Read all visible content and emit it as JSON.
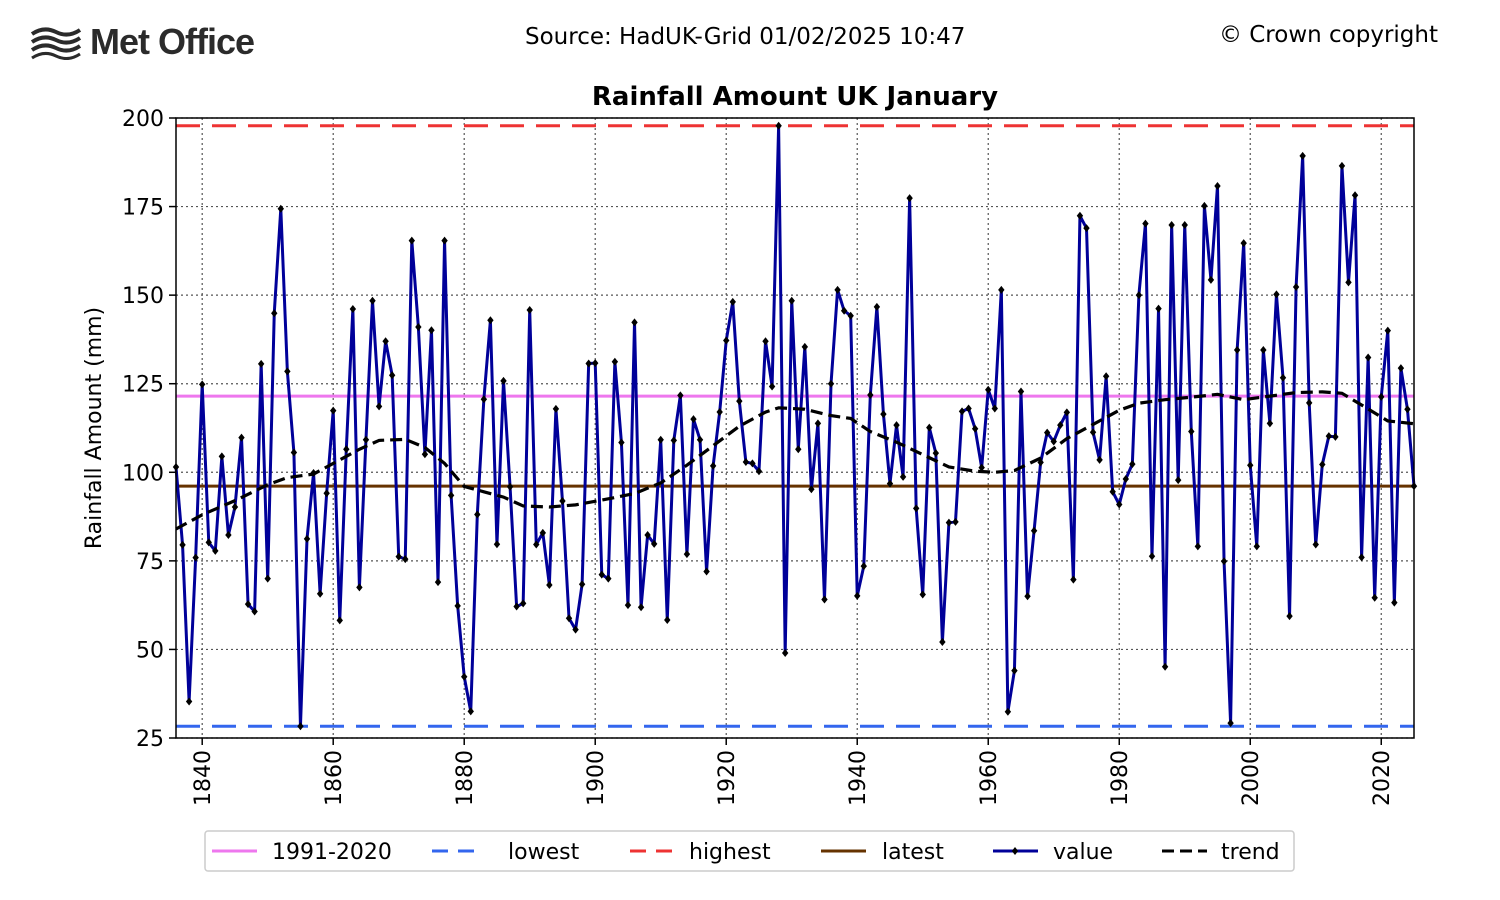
{
  "header": {
    "logo_text": "Met Office",
    "source": "Source: HadUK-Grid 01/02/2025 10:47",
    "copyright": "© Crown copyright"
  },
  "chart_data": {
    "type": "line",
    "title": "Rainfall Amount UK January",
    "xlabel": "",
    "ylabel": "Rainfall Amount (mm)",
    "xlim": [
      1836,
      2025
    ],
    "ylim": [
      25,
      200
    ],
    "x_ticks": [
      "1840",
      "1860",
      "1880",
      "1900",
      "1920",
      "1940",
      "1960",
      "1980",
      "2000",
      "2020"
    ],
    "y_ticks": [
      "25",
      "50",
      "75",
      "100",
      "125",
      "150",
      "175",
      "200"
    ],
    "grid": true,
    "legend_position": "bottom",
    "reference_lines": [
      {
        "name": "1991-2020",
        "value": 121.5,
        "color": "#ee77ee",
        "style": "solid"
      },
      {
        "name": "lowest",
        "value": 28.3,
        "color": "#3366ee",
        "style": "dashed"
      },
      {
        "name": "highest",
        "value": 197.8,
        "color": "#ee3333",
        "style": "dashed"
      },
      {
        "name": "latest",
        "value": 96.1,
        "color": "#663300",
        "style": "solid"
      }
    ],
    "series": [
      {
        "name": "value",
        "color": "#000099",
        "x_start": 1836,
        "values": [
          101.5,
          79.5,
          35.3,
          75.9,
          124.8,
          80.2,
          77.8,
          104.5,
          82.3,
          90.2,
          109.8,
          62.8,
          60.7,
          130.6,
          70.0,
          144.9,
          174.4,
          128.5,
          105.6,
          28.3,
          81.2,
          99.8,
          65.7,
          94.1,
          117.4,
          58.2,
          106.5,
          146.1,
          67.5,
          109.2,
          148.4,
          118.6,
          137.0,
          127.4,
          76.2,
          75.5,
          165.4,
          141.0,
          105.1,
          140.1,
          69.0,
          165.4,
          93.5,
          62.3,
          42.3,
          32.5,
          88.1,
          120.6,
          142.9,
          79.7,
          125.8,
          95.9,
          62.1,
          63.0,
          145.8,
          79.6,
          82.9,
          68.2,
          117.9,
          91.9,
          58.8,
          55.6,
          68.4,
          130.7,
          130.8,
          71.1,
          70.0,
          131.2,
          108.4,
          62.5,
          142.3,
          61.9,
          82.3,
          79.8,
          109.2,
          58.3,
          109.0,
          121.7,
          76.9,
          115.0,
          109.2,
          72.0,
          101.8,
          117.0,
          137.2,
          148.1,
          120.1,
          102.9,
          102.5,
          100.3,
          137.0,
          124.2,
          197.8,
          49.0,
          148.4,
          106.5,
          135.4,
          95.2,
          113.8,
          64.1,
          125.0,
          151.5,
          145.6,
          144.2,
          65.1,
          73.5,
          121.8,
          146.7,
          116.4,
          96.8,
          113.3,
          98.7,
          177.4,
          89.8,
          65.5,
          112.6,
          105.4,
          52.1,
          85.8,
          86.0,
          117.2,
          118.0,
          112.3,
          101.3,
          123.3,
          118.0,
          151.5,
          32.4,
          44.0,
          122.8,
          65.0,
          83.5,
          102.8,
          111.2,
          108.7,
          113.3,
          116.9,
          69.7,
          172.4,
          168.9,
          111.3,
          103.5,
          127.1,
          94.5,
          90.9,
          98.1,
          102.3,
          150.0,
          170.2,
          76.3,
          146.2,
          45.1,
          169.8,
          97.8,
          169.8,
          111.5,
          79.1,
          175.2,
          154.3,
          180.8,
          74.9,
          29.2,
          134.5,
          164.7,
          102.0,
          79.1,
          134.5,
          113.8,
          150.2,
          126.7,
          59.4,
          152.3,
          189.3,
          119.6,
          79.6,
          102.2,
          110.2,
          110.0,
          186.5,
          153.6,
          178.2,
          76.0,
          132.4,
          64.6,
          121.3,
          140.0,
          63.2,
          129.4,
          117.8,
          96.1
        ]
      },
      {
        "name": "trend",
        "color": "#000000",
        "style": "dashed",
        "x": [
          1836,
          1840,
          1845,
          1850,
          1853,
          1857,
          1860,
          1864,
          1867,
          1871,
          1874,
          1877,
          1880,
          1883,
          1886,
          1889,
          1893,
          1897,
          1902,
          1906,
          1910,
          1914,
          1918,
          1922,
          1926,
          1928,
          1932,
          1936,
          1939,
          1942,
          1946,
          1950,
          1954,
          1958,
          1961,
          1964,
          1968,
          1972,
          1976,
          1980,
          1983,
          1987,
          1991,
          1995,
          1999,
          2003,
          2007,
          2011,
          2014,
          2017,
          2021,
          2025
        ],
        "values": [
          84.0,
          88.0,
          92.0,
          96.5,
          98.5,
          99.5,
          102.5,
          106.5,
          109.0,
          109.3,
          107.0,
          102.5,
          96.0,
          94.5,
          93.0,
          90.5,
          90.2,
          90.8,
          92.5,
          94.0,
          97.0,
          102.0,
          107.5,
          113.0,
          117.0,
          118.2,
          117.8,
          116.0,
          115.2,
          111.5,
          108.5,
          105.0,
          101.5,
          100.3,
          100.0,
          100.5,
          104.0,
          109.5,
          113.5,
          117.5,
          119.5,
          120.5,
          121.2,
          122.0,
          120.5,
          121.5,
          122.5,
          122.7,
          122.3,
          119.0,
          114.5,
          113.7
        ]
      }
    ]
  }
}
